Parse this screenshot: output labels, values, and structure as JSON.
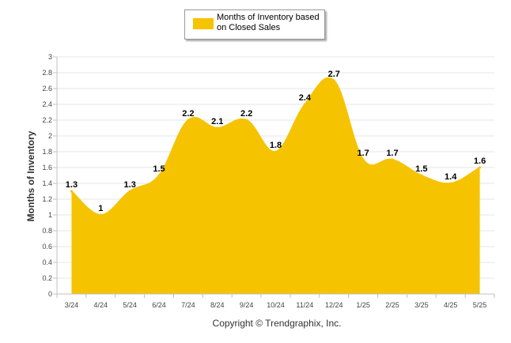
{
  "chart_data": {
    "type": "area",
    "categories": [
      "3/24",
      "4/24",
      "5/24",
      "6/24",
      "7/24",
      "8/24",
      "9/24",
      "10/24",
      "11/24",
      "12/24",
      "1/25",
      "2/25",
      "3/25",
      "4/25",
      "5/25"
    ],
    "series": [
      {
        "name": "Months of Inventory based on Closed Sales",
        "values": [
          1.3,
          1.0,
          1.3,
          1.5,
          2.2,
          2.1,
          2.2,
          1.8,
          2.4,
          2.7,
          1.7,
          1.7,
          1.5,
          1.4,
          1.6
        ],
        "labels": [
          "1.3",
          "1",
          "1.3",
          "1.5",
          "2.2",
          "2.1",
          "2.2",
          "1.8",
          "2.4",
          "2.7",
          "1.7",
          "1.7",
          "1.5",
          "1.4",
          "1.6"
        ],
        "color": "#f5c300"
      }
    ],
    "ylabel": "Months of Inventory",
    "xlabel": "",
    "ylim": [
      0,
      3
    ],
    "yticks": [
      "0",
      "0.2",
      "0.4",
      "0.6",
      "0.8",
      "1",
      "1.2",
      "1.4",
      "1.6",
      "1.8",
      "2",
      "2.2",
      "2.4",
      "2.6",
      "2.8",
      "3"
    ],
    "grid": true,
    "legend_position": "top-center"
  },
  "legend": {
    "label": "Months of Inventory based on Closed Sales"
  },
  "footer": {
    "copyright": "Copyright © Trendgraphix, Inc."
  },
  "colors": {
    "area": "#f5c300",
    "grid": "#e6e6e6",
    "axis": "#c0c0c0"
  }
}
